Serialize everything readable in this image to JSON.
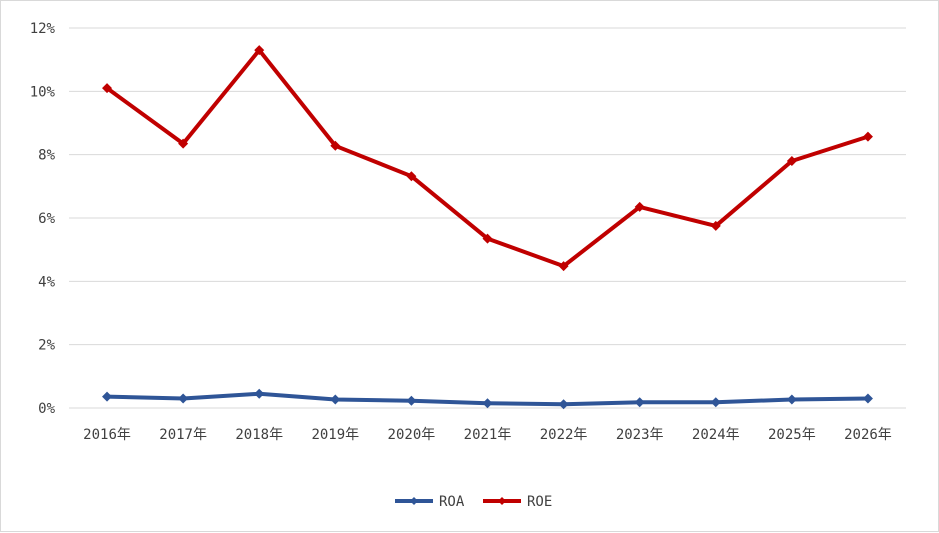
{
  "chart_data": {
    "type": "line",
    "title": "",
    "xlabel": "",
    "ylabel": "",
    "categories": [
      "2016年",
      "2017年",
      "2018年",
      "2019年",
      "2020年",
      "2021年",
      "2022年",
      "2023年",
      "2024年",
      "2025年",
      "2026年"
    ],
    "ylim": [
      0,
      12
    ],
    "y_ticks": [
      "0%",
      "2%",
      "4%",
      "6%",
      "8%",
      "10%",
      "12%"
    ],
    "grid": true,
    "legend_position": "bottom",
    "series": [
      {
        "name": "ROA",
        "color": "#2f5597",
        "marker": "diamond",
        "values": [
          0.36,
          0.3,
          0.45,
          0.27,
          0.23,
          0.15,
          0.12,
          0.18,
          0.18,
          0.27,
          0.3
        ]
      },
      {
        "name": "ROE",
        "color": "#c00000",
        "marker": "diamond",
        "values": [
          10.1,
          8.35,
          11.3,
          8.28,
          7.32,
          5.35,
          4.48,
          6.35,
          5.75,
          7.8,
          8.57
        ]
      }
    ]
  }
}
